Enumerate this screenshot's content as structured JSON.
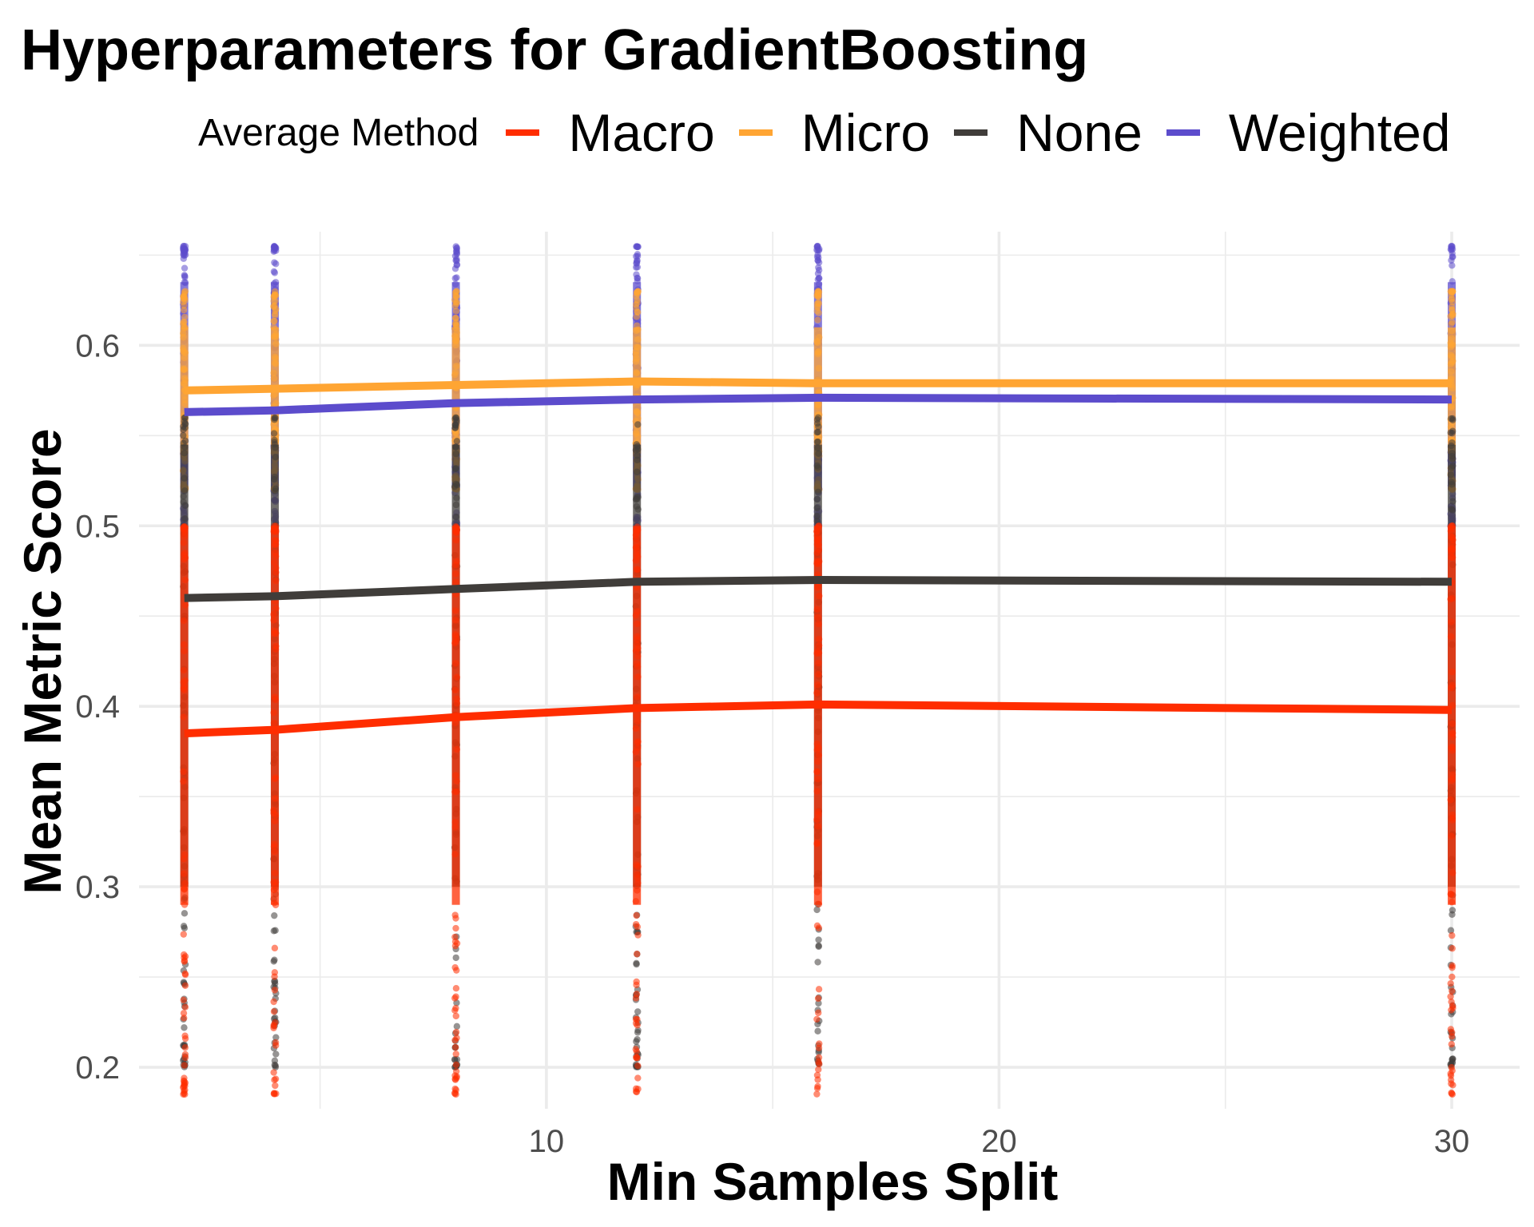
{
  "chart_data": {
    "type": "line",
    "title": "Hyperparameters for GradientBoosting",
    "xlabel": "Min Samples Split",
    "ylabel": "Mean Metric Score",
    "x_ticks": [
      10,
      20,
      30
    ],
    "y_ticks": [
      0.2,
      0.3,
      0.4,
      0.5,
      0.6
    ],
    "xlim": [
      1,
      31.5
    ],
    "ylim": [
      0.177,
      0.663
    ],
    "grid": true,
    "legend": {
      "title": "Average Method",
      "position": "top",
      "entries": [
        "Macro",
        "Micro",
        "None",
        "Weighted"
      ]
    },
    "x": [
      2,
      4,
      8,
      12,
      16,
      30
    ],
    "series": [
      {
        "name": "Macro",
        "color": "#ff2d00",
        "values": [
          0.385,
          0.387,
          0.394,
          0.399,
          0.401,
          0.398
        ],
        "points_min": 0.185,
        "points_max": 0.5
      },
      {
        "name": "Micro",
        "color": "#ffa533",
        "values": [
          0.575,
          0.576,
          0.578,
          0.58,
          0.579,
          0.579
        ],
        "points_min": 0.52,
        "points_max": 0.63
      },
      {
        "name": "None",
        "color": "#403d3a",
        "values": [
          0.46,
          0.461,
          0.465,
          0.469,
          0.47,
          0.469
        ],
        "points_min": 0.2,
        "points_max": 0.56
      },
      {
        "name": "Weighted",
        "color": "#5c4ccc",
        "values": [
          0.563,
          0.564,
          0.568,
          0.57,
          0.571,
          0.57
        ],
        "points_min": 0.5,
        "points_max": 0.655
      }
    ]
  }
}
